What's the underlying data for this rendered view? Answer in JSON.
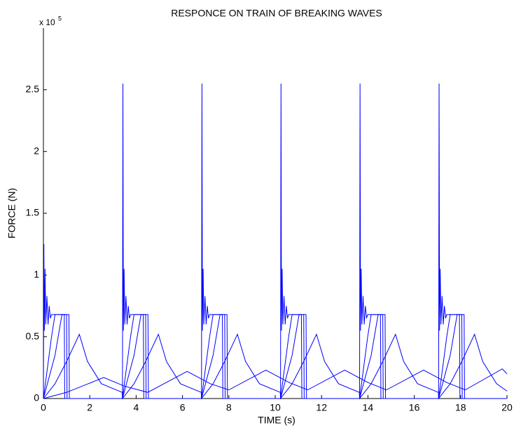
{
  "chart_data": {
    "type": "line",
    "title": "RESPONCE ON TRAIN OF BREAKING WAVES",
    "x_label": "TIME (s)",
    "y_label": "FORCE (N)",
    "y_multiplier": {
      "base": "x 10",
      "exponent": "5"
    },
    "xlim": [
      0,
      20
    ],
    "xticks": [
      0,
      2,
      4,
      6,
      8,
      10,
      12,
      14,
      16,
      18,
      20
    ],
    "ylim": [
      0,
      3
    ],
    "yticks": [
      0,
      0.5,
      1,
      1.5,
      2,
      2.5
    ],
    "grid": false,
    "series": [
      {
        "color": "#0000ff",
        "x": [
          0,
          0.02,
          0.04,
          0.07,
          0.1,
          0.15,
          0.2,
          0.25,
          0.3,
          0.35,
          0.9,
          0.92,
          3.41,
          3.43,
          3.45,
          3.48,
          3.51,
          3.56,
          3.61,
          3.66,
          3.71,
          3.76,
          4.31,
          4.33,
          6.82,
          6.84,
          6.86,
          6.89,
          6.92,
          6.97,
          7.02,
          7.07,
          7.12,
          7.17,
          7.72,
          7.74,
          10.23,
          10.25,
          10.27,
          10.3,
          10.33,
          10.38,
          10.43,
          10.48,
          10.53,
          10.58,
          11.13,
          11.15,
          13.64,
          13.66,
          13.68,
          13.71,
          13.74,
          13.79,
          13.84,
          13.89,
          13.94,
          13.99,
          14.54,
          14.56,
          17.05,
          17.07,
          17.09,
          17.12,
          17.15,
          17.2,
          17.25,
          17.3,
          17.35,
          17.4,
          17.95,
          17.97,
          20
        ],
        "values": [
          0,
          1.25,
          0.55,
          1.05,
          0.6,
          0.83,
          0.6,
          0.75,
          0.65,
          0.68,
          0.68,
          0,
          0,
          2.55,
          0.55,
          1.05,
          0.6,
          0.83,
          0.6,
          0.75,
          0.65,
          0.68,
          0.68,
          0,
          0,
          2.55,
          0.55,
          1.05,
          0.6,
          0.83,
          0.6,
          0.75,
          0.65,
          0.68,
          0.68,
          0,
          0,
          2.55,
          0.55,
          1.05,
          0.6,
          0.83,
          0.6,
          0.75,
          0.65,
          0.68,
          0.68,
          0,
          0,
          2.55,
          0.55,
          1.05,
          0.6,
          0.83,
          0.6,
          0.75,
          0.65,
          0.68,
          0.68,
          0,
          0,
          2.55,
          0.55,
          1.05,
          0.6,
          0.83,
          0.6,
          0.75,
          0.65,
          0.68,
          0.68,
          0,
          0
        ]
      },
      {
        "color": "#0000ff",
        "x": [
          0,
          0.35,
          0.5,
          1.0,
          1.02,
          3.41,
          3.76,
          3.91,
          4.41,
          4.43,
          6.82,
          7.17,
          7.32,
          7.82,
          7.84,
          10.23,
          10.58,
          10.73,
          11.23,
          11.25,
          13.64,
          13.99,
          14.14,
          14.64,
          14.66,
          17.05,
          17.4,
          17.55,
          18.05,
          18.07,
          20
        ],
        "values": [
          0,
          0.5,
          0.68,
          0.68,
          0,
          0,
          0.5,
          0.68,
          0.68,
          0,
          0,
          0.5,
          0.68,
          0.68,
          0,
          0,
          0.5,
          0.68,
          0.68,
          0,
          0,
          0.5,
          0.68,
          0.68,
          0,
          0,
          0.5,
          0.68,
          0.68,
          0,
          0
        ]
      },
      {
        "color": "#0000ff",
        "x": [
          0,
          0.5,
          0.8,
          1.1,
          1.12,
          3.41,
          3.91,
          4.21,
          4.51,
          4.53,
          6.82,
          7.32,
          7.62,
          7.92,
          7.94,
          10.23,
          10.73,
          11.03,
          11.33,
          11.35,
          13.64,
          14.14,
          14.44,
          14.74,
          14.76,
          17.05,
          17.55,
          17.85,
          18.15,
          18.17,
          20
        ],
        "values": [
          0,
          0.35,
          0.68,
          0.68,
          0,
          0,
          0.35,
          0.68,
          0.68,
          0,
          0,
          0.35,
          0.68,
          0.68,
          0,
          0,
          0.35,
          0.68,
          0.68,
          0,
          0,
          0.35,
          0.68,
          0.68,
          0,
          0,
          0.35,
          0.68,
          0.68,
          0,
          0
        ]
      },
      {
        "color": "#0000ff",
        "x": [
          0,
          0.5,
          1.0,
          1.55,
          1.9,
          2.5,
          3.4,
          3.41,
          3.91,
          4.41,
          4.96,
          5.31,
          5.91,
          6.81,
          6.82,
          7.32,
          7.82,
          8.37,
          8.72,
          9.32,
          10.22,
          10.23,
          10.73,
          11.23,
          11.78,
          12.13,
          12.73,
          13.63,
          13.64,
          14.14,
          14.64,
          15.19,
          15.54,
          16.14,
          17.04,
          17.05,
          17.55,
          18.05,
          18.6,
          18.95,
          19.55,
          20
        ],
        "values": [
          0,
          0.12,
          0.3,
          0.52,
          0.3,
          0.12,
          0.05,
          0,
          0.12,
          0.3,
          0.52,
          0.3,
          0.12,
          0.05,
          0,
          0.12,
          0.3,
          0.52,
          0.3,
          0.12,
          0.05,
          0,
          0.12,
          0.3,
          0.52,
          0.3,
          0.12,
          0.05,
          0,
          0.12,
          0.3,
          0.52,
          0.3,
          0.12,
          0.05,
          0,
          0.12,
          0.3,
          0.52,
          0.3,
          0.12,
          0.06
        ]
      },
      {
        "color": "#0000ff",
        "x": [
          0,
          1.0,
          2.6,
          3.5,
          4.5,
          6.2,
          7.2,
          8.0,
          9.6,
          10.6,
          11.4,
          13.0,
          14.0,
          14.8,
          16.4,
          17.4,
          18.2,
          19.8,
          20
        ],
        "values": [
          0,
          0.05,
          0.17,
          0.1,
          0.05,
          0.22,
          0.12,
          0.07,
          0.23,
          0.13,
          0.07,
          0.23,
          0.13,
          0.07,
          0.23,
          0.13,
          0.07,
          0.24,
          0.2
        ]
      }
    ]
  }
}
